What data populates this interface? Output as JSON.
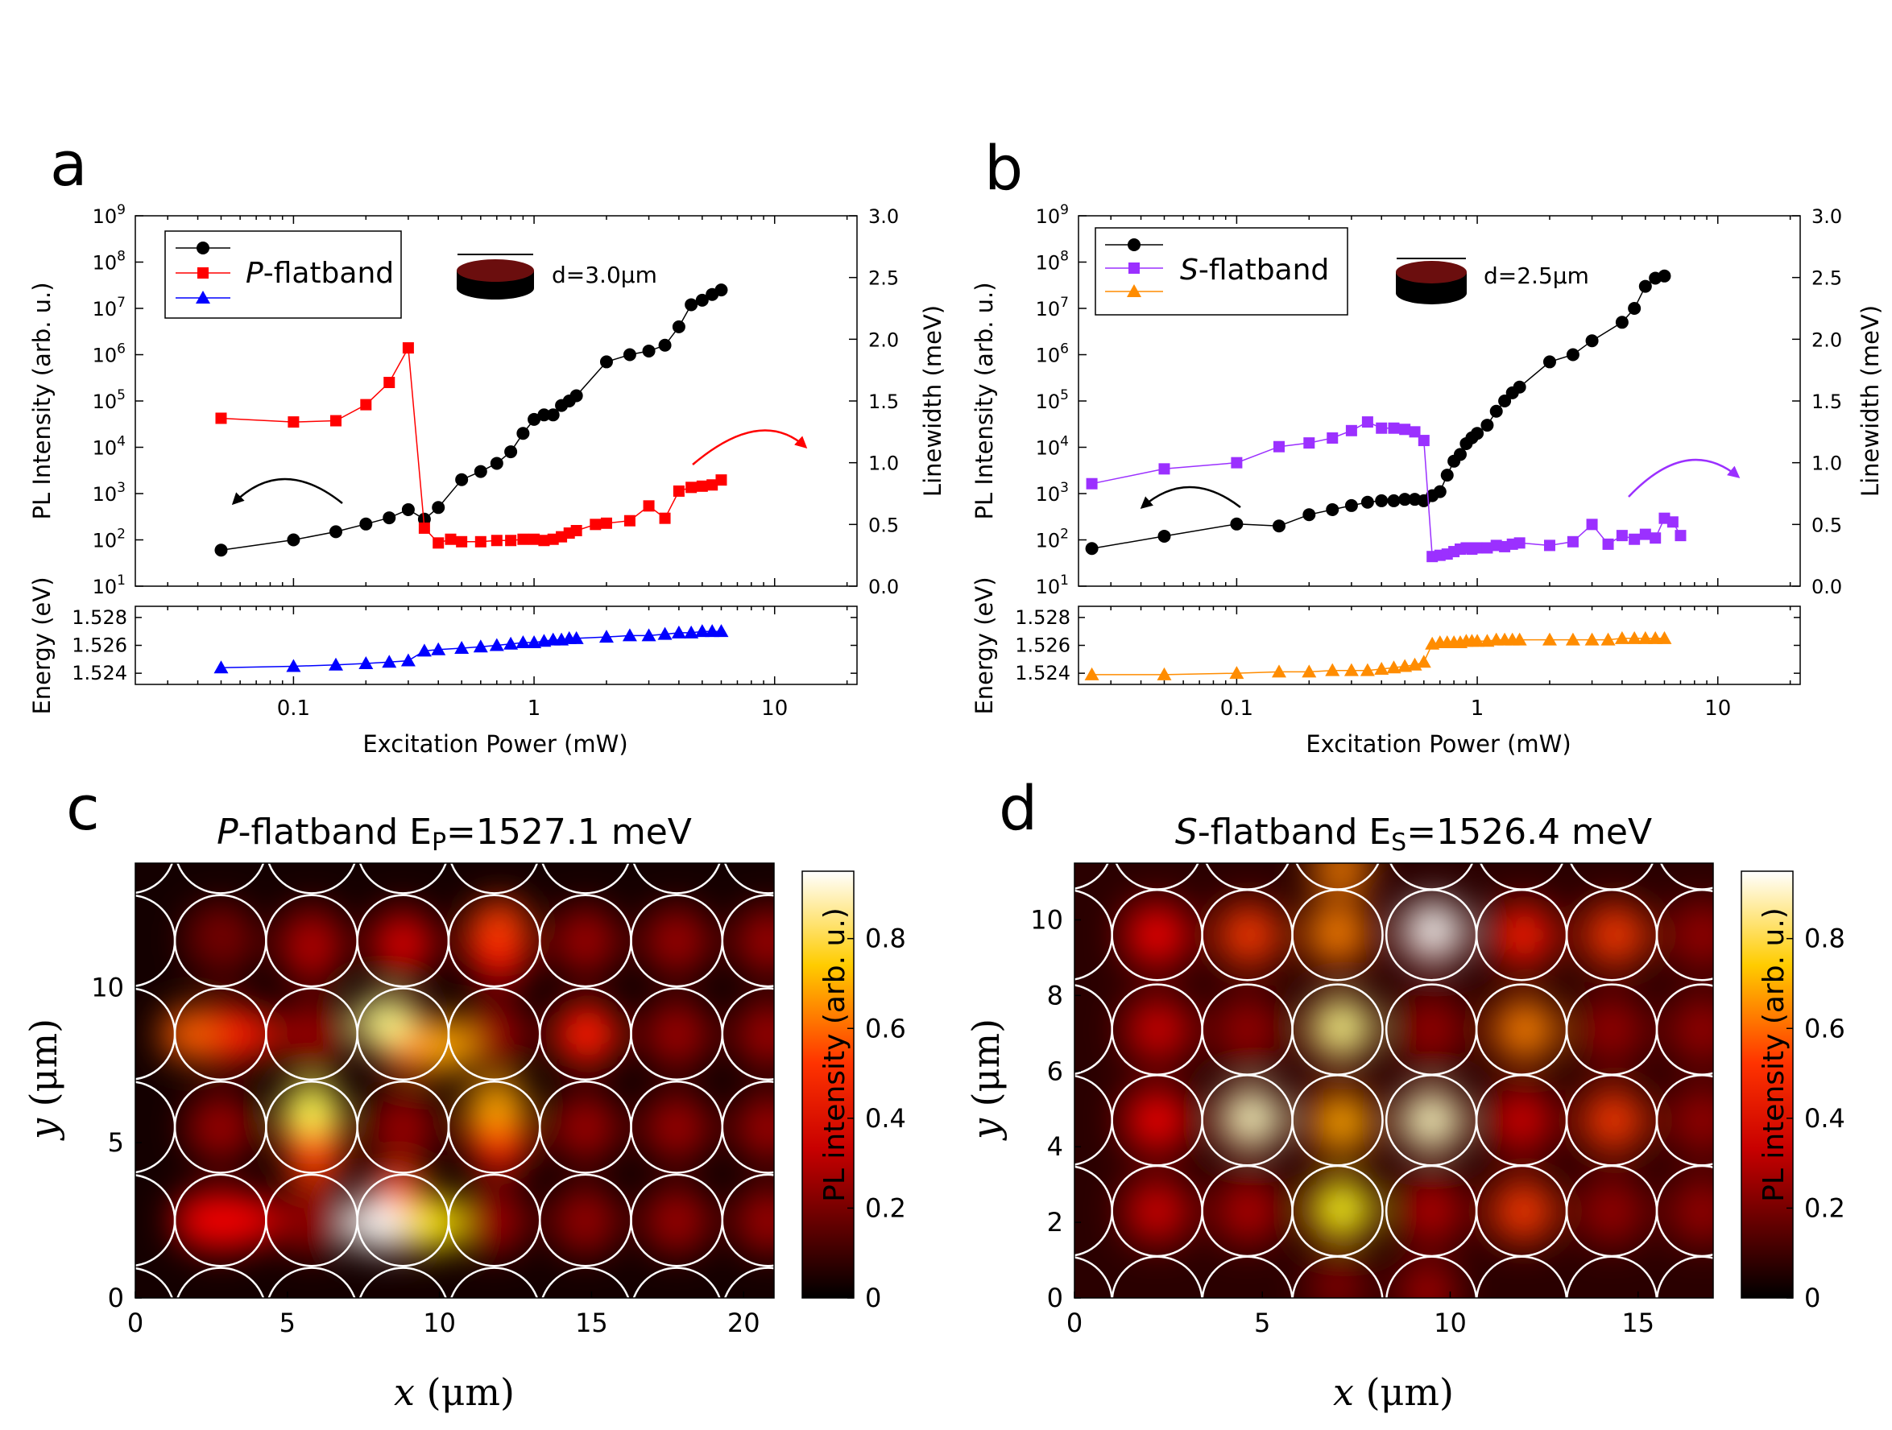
{
  "chart_data": [
    {
      "panel": "a",
      "type": "scatter",
      "xscale": "log",
      "xlabel": "Excitation Power (mW)",
      "xlim": [
        0.022,
        22
      ],
      "xticks": [
        0.1,
        1,
        10
      ],
      "xtick_labels": [
        "0.1",
        "1",
        "10"
      ],
      "inset": {
        "label": "d=3.0μm"
      },
      "legend": {
        "label_italic": "P",
        "label_rest": "-flatband",
        "placement": "top-left"
      },
      "top": {
        "ylabel_left": "PL Intensity (arb. u.)",
        "ylabel_right": "Linewidth (meV)",
        "ylim_left_log10": [
          1,
          9
        ],
        "ylim_right": [
          0,
          3
        ],
        "left_tick_exponents": [
          "1",
          "2",
          "3",
          "4",
          "5",
          "6",
          "7",
          "8",
          "9"
        ],
        "right_tick_labels": [
          "0.0",
          "0.5",
          "1.0",
          "1.5",
          "2.0",
          "2.5",
          "3.0"
        ],
        "series": [
          {
            "name": "PL intensity",
            "axis": "left",
            "color": "#000000",
            "marker": "circle",
            "x": [
              0.05,
              0.1,
              0.15,
              0.2,
              0.25,
              0.3,
              0.35,
              0.4,
              0.5,
              0.6,
              0.7,
              0.8,
              0.9,
              1.0,
              1.1,
              1.2,
              1.3,
              1.4,
              1.5,
              2.0,
              2.5,
              3.0,
              3.5,
              4.0,
              4.5,
              5.0,
              5.5,
              6.0
            ],
            "y": [
              60,
              100,
              150,
              220,
              300,
              450,
              280,
              500,
              2000,
              3000,
              4500,
              8000,
              20000,
              40000,
              50000,
              50000,
              80000,
              100000,
              130000,
              700000,
              1000000,
              1200000,
              1600000,
              4000000,
              12000000,
              15000000,
              20000000,
              25000000
            ]
          },
          {
            "name": "Linewidth",
            "axis": "right",
            "color": "#ff0000",
            "marker": "square",
            "x": [
              0.05,
              0.1,
              0.15,
              0.2,
              0.25,
              0.3,
              0.35,
              0.4,
              0.45,
              0.5,
              0.6,
              0.7,
              0.8,
              0.9,
              1.0,
              1.1,
              1.2,
              1.3,
              1.4,
              1.5,
              1.8,
              2.0,
              2.5,
              3.0,
              3.5,
              4.0,
              4.5,
              5.0,
              5.5,
              6.0
            ],
            "y": [
              1.36,
              1.33,
              1.34,
              1.47,
              1.65,
              1.93,
              0.47,
              0.35,
              0.38,
              0.36,
              0.36,
              0.37,
              0.37,
              0.38,
              0.38,
              0.37,
              0.38,
              0.4,
              0.43,
              0.45,
              0.5,
              0.51,
              0.53,
              0.65,
              0.55,
              0.77,
              0.8,
              0.81,
              0.82,
              0.86
            ]
          }
        ],
        "arrows": [
          {
            "direction": "to left axis",
            "color": "#000000"
          },
          {
            "direction": "to right axis",
            "color": "#ff0000"
          }
        ]
      },
      "bottom": {
        "ylabel": "Energy (eV)",
        "ylim": [
          1.5232,
          1.5288
        ],
        "ytick_labels": [
          "1.524",
          "1.526",
          "1.528"
        ],
        "series": [
          {
            "name": "Energy",
            "color": "#0000ff",
            "marker": "triangle",
            "x": [
              0.05,
              0.1,
              0.15,
              0.2,
              0.25,
              0.3,
              0.35,
              0.4,
              0.5,
              0.6,
              0.7,
              0.8,
              0.9,
              1.0,
              1.1,
              1.2,
              1.3,
              1.4,
              1.5,
              2.0,
              2.5,
              3.0,
              3.5,
              4.0,
              4.5,
              5.0,
              5.5,
              6.0
            ],
            "y": [
              1.5244,
              1.5245,
              1.5246,
              1.5247,
              1.5248,
              1.5249,
              1.5256,
              1.5257,
              1.5258,
              1.5259,
              1.526,
              1.5261,
              1.5262,
              1.5262,
              1.5263,
              1.5264,
              1.5264,
              1.5265,
              1.5265,
              1.5266,
              1.5267,
              1.5267,
              1.5268,
              1.5269,
              1.5269,
              1.527,
              1.527,
              1.527
            ]
          }
        ]
      }
    },
    {
      "panel": "b",
      "type": "scatter",
      "xscale": "log",
      "xlabel": "Excitation Power (mW)",
      "xlim": [
        0.022,
        22
      ],
      "xticks": [
        0.1,
        1,
        10
      ],
      "xtick_labels": [
        "0.1",
        "1",
        "10"
      ],
      "inset": {
        "label": "d=2.5μm"
      },
      "legend": {
        "label_italic": "S",
        "label_rest": "-flatband",
        "placement": "top-left"
      },
      "top": {
        "ylabel_left": "PL Intensity (arb. u.)",
        "ylabel_right": "Linewidth (meV)",
        "ylim_left_log10": [
          1,
          9
        ],
        "ylim_right": [
          0,
          3
        ],
        "left_tick_exponents": [
          "1",
          "2",
          "3",
          "4",
          "5",
          "6",
          "7",
          "8",
          "9"
        ],
        "right_tick_labels": [
          "0.0",
          "0.5",
          "1.0",
          "1.5",
          "2.0",
          "2.5",
          "3.0"
        ],
        "series": [
          {
            "name": "PL intensity",
            "axis": "left",
            "color": "#000000",
            "marker": "circle",
            "x": [
              0.025,
              0.05,
              0.1,
              0.15,
              0.2,
              0.25,
              0.3,
              0.35,
              0.4,
              0.45,
              0.5,
              0.55,
              0.6,
              0.65,
              0.7,
              0.75,
              0.8,
              0.85,
              0.9,
              0.95,
              1.0,
              1.1,
              1.2,
              1.3,
              1.4,
              1.5,
              2.0,
              2.5,
              3.0,
              4.0,
              4.5,
              5.0,
              5.5,
              6.0
            ],
            "y": [
              65,
              120,
              220,
              200,
              350,
              450,
              550,
              650,
              700,
              700,
              750,
              750,
              700,
              900,
              1100,
              2500,
              5000,
              7000,
              12000,
              16000,
              20000,
              30000,
              60000,
              100000,
              150000,
              200000,
              700000,
              1000000,
              2000000,
              5000000,
              10000000,
              30000000,
              45000000,
              50000000
            ]
          },
          {
            "name": "Linewidth",
            "axis": "right",
            "color": "#9b30ff",
            "marker": "square",
            "x": [
              0.025,
              0.05,
              0.1,
              0.15,
              0.2,
              0.25,
              0.3,
              0.35,
              0.4,
              0.45,
              0.5,
              0.55,
              0.6,
              0.65,
              0.7,
              0.75,
              0.8,
              0.85,
              0.9,
              0.95,
              1.0,
              1.1,
              1.2,
              1.3,
              1.4,
              1.5,
              2.0,
              2.5,
              3.0,
              3.5,
              4.0,
              4.5,
              5.0,
              5.5,
              6.0,
              6.5,
              7.0
            ],
            "y": [
              0.83,
              0.95,
              1.0,
              1.13,
              1.16,
              1.2,
              1.26,
              1.33,
              1.28,
              1.28,
              1.27,
              1.25,
              1.18,
              0.24,
              0.25,
              0.26,
              0.28,
              0.3,
              0.31,
              0.3,
              0.31,
              0.31,
              0.33,
              0.32,
              0.34,
              0.35,
              0.33,
              0.36,
              0.5,
              0.34,
              0.41,
              0.38,
              0.42,
              0.39,
              0.55,
              0.52,
              0.41
            ]
          }
        ],
        "arrows": [
          {
            "direction": "to left axis",
            "color": "#000000"
          },
          {
            "direction": "to right axis",
            "color": "#9b30ff"
          }
        ]
      },
      "bottom": {
        "ylabel": "Energy (eV)",
        "ylim": [
          1.5232,
          1.5288
        ],
        "ytick_labels": [
          "1.524",
          "1.526",
          "1.528"
        ],
        "series": [
          {
            "name": "Energy",
            "color": "#ff8c00",
            "marker": "triangle",
            "x": [
              0.025,
              0.05,
              0.1,
              0.15,
              0.2,
              0.25,
              0.3,
              0.35,
              0.4,
              0.45,
              0.5,
              0.55,
              0.6,
              0.65,
              0.7,
              0.75,
              0.8,
              0.85,
              0.9,
              0.95,
              1.0,
              1.1,
              1.2,
              1.3,
              1.4,
              1.5,
              2.0,
              2.5,
              3.0,
              3.5,
              4.0,
              4.5,
              5.0,
              5.5,
              6.0
            ],
            "y": [
              1.5239,
              1.5239,
              1.524,
              1.5241,
              1.5241,
              1.5242,
              1.5242,
              1.5242,
              1.5243,
              1.5244,
              1.5245,
              1.5246,
              1.5248,
              1.5261,
              1.5262,
              1.5262,
              1.5262,
              1.5262,
              1.5263,
              1.5263,
              1.5263,
              1.5263,
              1.5264,
              1.5264,
              1.5264,
              1.5264,
              1.5264,
              1.5264,
              1.5264,
              1.5264,
              1.5265,
              1.5265,
              1.5265,
              1.5265,
              1.5265
            ]
          }
        ]
      }
    },
    {
      "panel": "c",
      "type": "heatmap",
      "title_italic": "P",
      "title_rest": "-flatband E",
      "title_sub": "P",
      "title_value": "=1527.1 meV",
      "xlabel_var": "x",
      "xlabel_unit": " (μm)",
      "ylabel_var": "y",
      "ylabel_unit": " (μm)",
      "xlim": [
        0,
        21
      ],
      "ylim": [
        0,
        14
      ],
      "xtick_labels": [
        "0",
        "5",
        "10",
        "15",
        "20"
      ],
      "ytick_labels": [
        "0",
        "5",
        "10"
      ],
      "colorbar": {
        "label": "PL intensity (arb. u.)",
        "ticks": [
          "0",
          "0.2",
          "0.4",
          "0.6",
          "0.8"
        ],
        "max": 0.95,
        "colormap": "hot"
      },
      "pillar_diameter": 3.0,
      "pillar_rows_y": [
        2.5,
        5.5,
        8.5,
        11.5
      ],
      "pillar_cols_x": [
        2.8,
        5.8,
        8.8,
        11.8,
        14.8,
        17.8,
        20.8
      ],
      "hotspots": [
        [
          1.8,
          8.5,
          0.5
        ],
        [
          3.6,
          8.5,
          0.4
        ],
        [
          8.2,
          8.9,
          0.85
        ],
        [
          9.1,
          8.0,
          0.5
        ],
        [
          10.2,
          8.1,
          0.6
        ],
        [
          12.0,
          12.0,
          0.45
        ],
        [
          12.0,
          11.0,
          0.35
        ],
        [
          14.9,
          8.5,
          0.4
        ],
        [
          5.8,
          6.1,
          0.8
        ],
        [
          5.8,
          5.2,
          0.35
        ],
        [
          5.9,
          4.5,
          0.45
        ],
        [
          11.9,
          6.2,
          0.6
        ],
        [
          12.0,
          4.9,
          0.4
        ],
        [
          2.2,
          2.5,
          0.35
        ],
        [
          3.7,
          2.5,
          0.35
        ],
        [
          7.9,
          2.4,
          0.95
        ],
        [
          8.6,
          3.4,
          0.45
        ],
        [
          9.8,
          2.4,
          0.7
        ],
        [
          5.8,
          11.0,
          0.25
        ],
        [
          8.8,
          11.2,
          0.3
        ],
        [
          2.7,
          11.3,
          0.15
        ],
        [
          14.9,
          2.5,
          0.2
        ],
        [
          5.8,
          2.2,
          0.2
        ]
      ]
    },
    {
      "panel": "d",
      "type": "heatmap",
      "title_italic": "S",
      "title_rest": "-flatband E",
      "title_sub": "S",
      "title_value": "=1526.4 meV",
      "xlabel_var": "x",
      "xlabel_unit": " (μm)",
      "ylabel_var": "y",
      "ylabel_unit": " (μm)",
      "xlim": [
        0,
        17
      ],
      "ylim": [
        0,
        11.5
      ],
      "xtick_labels": [
        "0",
        "5",
        "10",
        "15"
      ],
      "ytick_labels": [
        "0",
        "2",
        "4",
        "6",
        "8",
        "10"
      ],
      "colorbar": {
        "label": "PL intensity (arb. u.)",
        "ticks": [
          "0",
          "0.2",
          "0.4",
          "0.6",
          "0.8"
        ],
        "max": 0.95,
        "colormap": "hot"
      },
      "pillar_diameter": 2.4,
      "pillar_rows_y": [
        2.3,
        4.7,
        7.1,
        9.6
      ],
      "pillar_cols_x": [
        2.2,
        4.6,
        7.0,
        9.5,
        11.9,
        14.3,
        16.7
      ],
      "hotspots": [
        [
          9.6,
          9.8,
          0.95
        ],
        [
          7.0,
          9.7,
          0.55
        ],
        [
          4.7,
          9.6,
          0.45
        ],
        [
          2.2,
          9.6,
          0.35
        ],
        [
          12.0,
          9.6,
          0.4
        ],
        [
          14.5,
          9.6,
          0.45
        ],
        [
          7.2,
          7.2,
          0.85
        ],
        [
          12.1,
          7.1,
          0.55
        ],
        [
          2.3,
          7.1,
          0.3
        ],
        [
          4.8,
          4.8,
          0.9
        ],
        [
          7.2,
          4.6,
          0.6
        ],
        [
          9.5,
          4.7,
          0.9
        ],
        [
          14.4,
          4.7,
          0.45
        ],
        [
          2.2,
          4.7,
          0.35
        ],
        [
          11.9,
          4.7,
          0.3
        ],
        [
          7.2,
          2.4,
          0.75
        ],
        [
          12.0,
          2.3,
          0.45
        ],
        [
          2.2,
          2.3,
          0.3
        ],
        [
          4.7,
          2.3,
          0.25
        ],
        [
          9.5,
          2.3,
          0.25
        ],
        [
          7.1,
          11.4,
          0.55
        ],
        [
          9.4,
          0.2,
          0.25
        ],
        [
          7.0,
          0.3,
          0.2
        ]
      ]
    }
  ],
  "panel_labels": [
    "a",
    "b",
    "c",
    "d"
  ]
}
